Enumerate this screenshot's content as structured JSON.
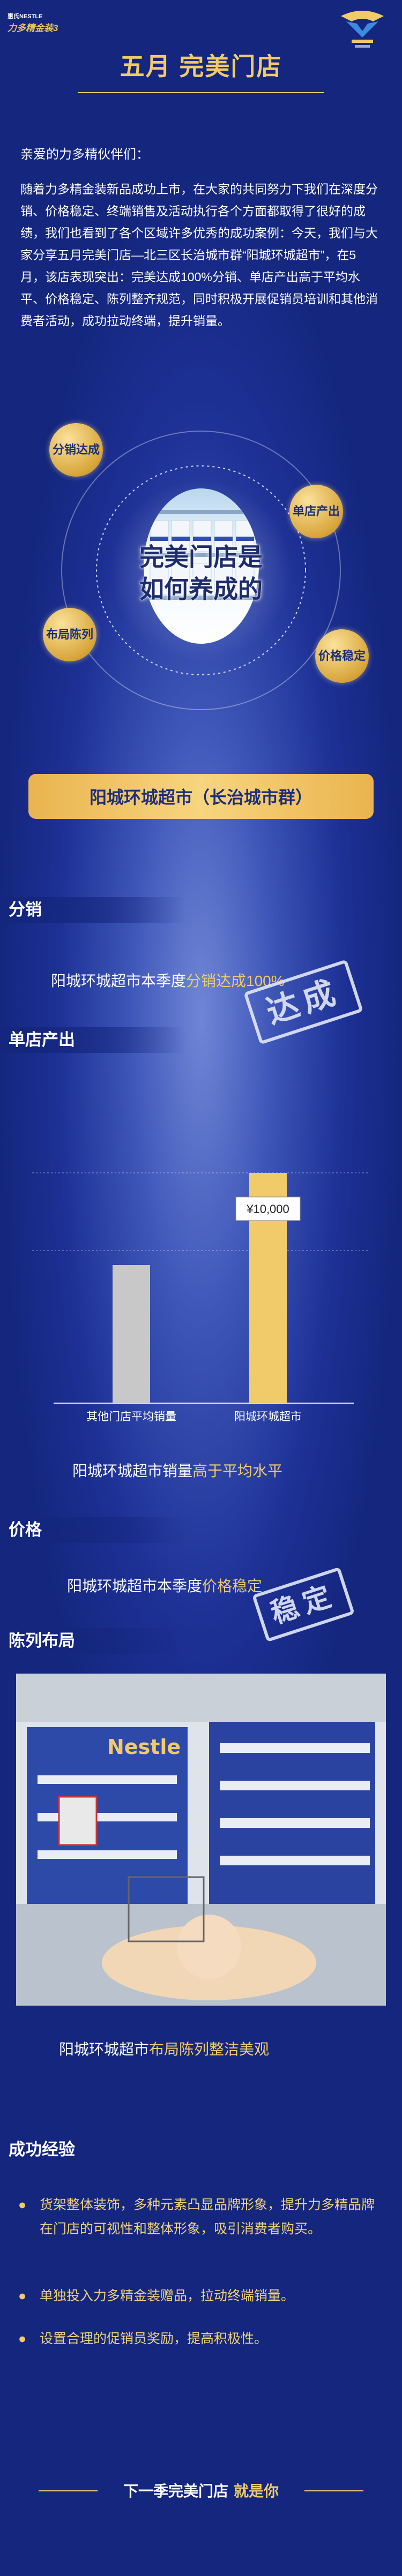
{
  "header": {
    "brand_top": "惠氏NESTLE",
    "brand_main": "力多精金装3",
    "title": "五月 完美门店"
  },
  "intro": {
    "greeting": "亲爱的力多精伙伴们：",
    "body": "随着力多精金装新品成功上市，在大家的共同努力下我们在深度分销、价格稳定、终端销售及活动执行各个方面都取得了很好的成绩，我们也看到了各个区域许多优秀的成功案例：今天，我们与大家分享五月完美门店—北三区长治城市群“阳城环城超市”，在5月，该店表现突出：完美达成100%分销、单店产出高于平均水平、价格稳定、陈列整齐规范，同时积极开展促销员培训和其他消费者活动，成功拉动终端，提升销量。"
  },
  "circle": {
    "center_text_1": "完美门店是",
    "center_text_2": "如何养成的",
    "badges": [
      "分销达成",
      "单店产出",
      "布局陈列",
      "价格稳定"
    ]
  },
  "banner": {
    "store": "阳城环城超市（长治城市群）"
  },
  "sections": {
    "distribution": {
      "heading": "分销",
      "text_prefix": "阳城环城超市本季度",
      "text_highlight": "分销达成100%",
      "stamp": "达成"
    },
    "output": {
      "heading": "单店产出"
    },
    "price": {
      "heading": "价格",
      "text_prefix": "阳城环城超市本季度",
      "text_highlight": "价格稳定",
      "stamp": "稳定"
    },
    "display": {
      "heading": "陈列布局",
      "caption_prefix": "阳城环城超市",
      "caption_highlight": "布局陈列整洁美观"
    },
    "experience": {
      "heading": "成功经验",
      "items": [
        "货架整体装饰，多种元素凸显品牌形象，提升力多精品牌在门店的可视性和整体形象，吸引消费者购买。",
        "单独投入力多精金装赠品，拉动终端销量。",
        "设置合理的促销员奖励，提高积极性。"
      ]
    }
  },
  "chart_data": {
    "type": "bar",
    "categories": [
      "其他门店平均销量",
      "阳城环城超市"
    ],
    "values": [
      6000,
      10000
    ],
    "value_labels": [
      "",
      "¥10,000"
    ],
    "colors": [
      "#c8c8c8",
      "#f1cb6a"
    ],
    "caption_prefix": "阳城环城超市销量",
    "caption_highlight": "高于平均水平"
  },
  "footer": {
    "text": "下一季完美门店",
    "highlight": "就是你"
  }
}
